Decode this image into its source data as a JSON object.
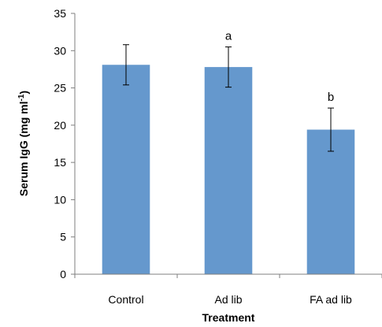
{
  "chart_data": {
    "type": "bar",
    "categories": [
      "Control",
      "Ad lib",
      "FA ad lib"
    ],
    "values": [
      28.1,
      27.8,
      19.4
    ],
    "error": [
      2.7,
      2.7,
      2.9
    ],
    "annotations": [
      "",
      "a",
      "b"
    ],
    "xlabel": "Treatment",
    "ylabel": "Serum IgG (mg ml",
    "ylabel_sup": "-1",
    "ylabel_close": ")",
    "ylim": [
      0,
      35
    ],
    "yticks": [
      0,
      5,
      10,
      15,
      20,
      25,
      30,
      35
    ],
    "grid": false,
    "bar_color": "#6598cd"
  }
}
